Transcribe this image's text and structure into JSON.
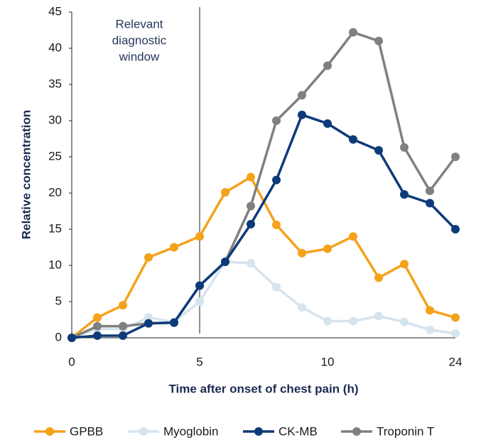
{
  "chart_data": {
    "type": "line",
    "y_label": "Relative concentration",
    "x_label": "Time after onset of chest pain (h)",
    "annotation": [
      "Relevant",
      "diagnostic",
      "window"
    ],
    "vline_at": 5,
    "categories": [
      "0",
      null,
      null,
      null,
      null,
      "5",
      null,
      null,
      null,
      null,
      "10",
      null,
      null,
      null,
      null,
      "24"
    ],
    "ylim": [
      0,
      45
    ],
    "yticks": [
      0,
      5,
      10,
      15,
      20,
      25,
      30,
      35,
      40,
      45
    ],
    "series": [
      {
        "name": "GPBB",
        "color": "#f5a21b",
        "values": [
          0,
          2.8,
          4.5,
          11.1,
          12.5,
          14,
          20.1,
          22.2,
          15.6,
          11.7,
          12.3,
          14,
          8.3,
          10.2,
          3.8,
          2.8
        ]
      },
      {
        "name": "Myoglobin",
        "color": "#d6e4ee",
        "values": [
          0,
          1.2,
          1.2,
          2.8,
          2.2,
          5,
          10.5,
          10.3,
          7,
          4.2,
          2.3,
          2.3,
          3,
          2.2,
          1.1,
          0.6
        ]
      },
      {
        "name": "CK-MB",
        "color": "#0d3b7a",
        "values": [
          0,
          0.3,
          0.3,
          2,
          2.1,
          7.2,
          10.5,
          15.7,
          21.8,
          30.8,
          29.6,
          27.4,
          25.9,
          19.8,
          18.6,
          15
        ]
      },
      {
        "name": "Troponin T",
        "color": "#808080",
        "values": [
          0,
          1.6,
          1.6,
          2,
          2.1,
          7.2,
          10.5,
          18.2,
          30,
          33.5,
          37.6,
          42.2,
          41,
          26.3,
          20.3,
          25
        ]
      }
    ]
  }
}
